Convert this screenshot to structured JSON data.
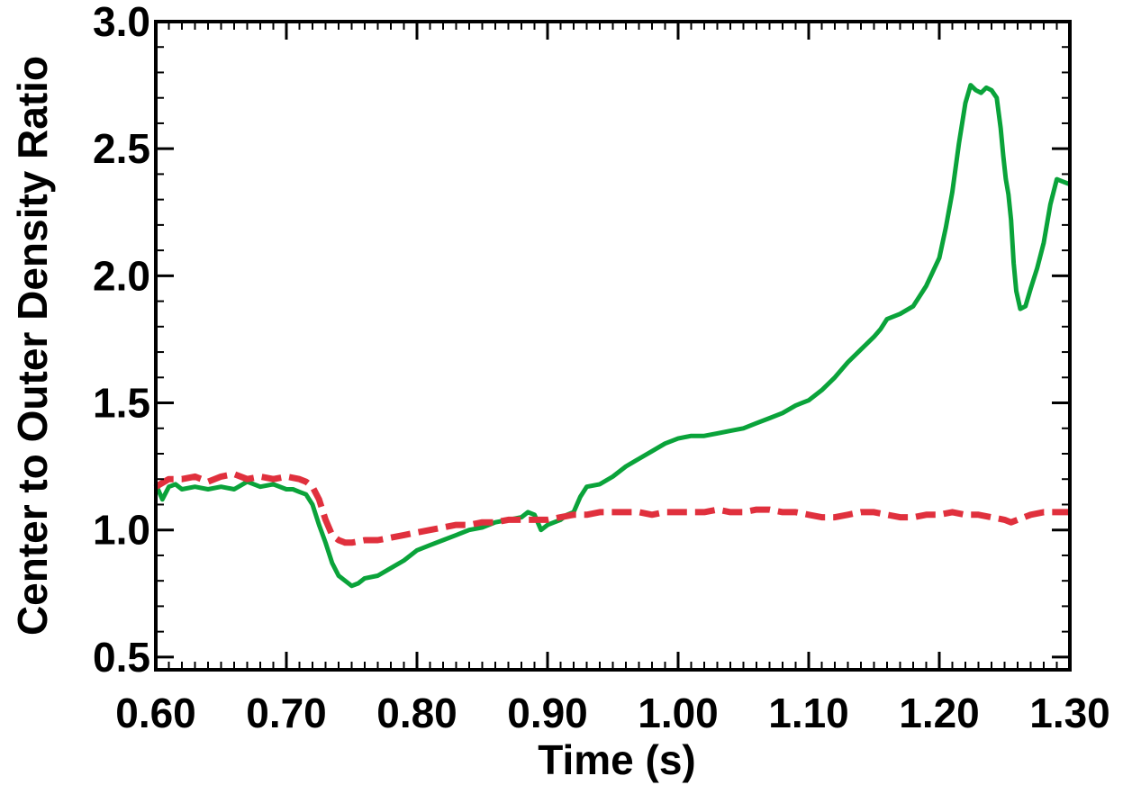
{
  "chart_data": {
    "type": "line",
    "title": "",
    "xlabel": "Time (s)",
    "ylabel": "Center to Outer Density Ratio",
    "xlim": [
      0.6,
      1.3
    ],
    "ylim": [
      0.45,
      3.0
    ],
    "xticks": [
      0.6,
      0.7,
      0.8,
      0.9,
      1.0,
      1.1,
      1.2,
      1.3
    ],
    "xtick_labels": [
      "0.60",
      "0.70",
      "0.80",
      "0.90",
      "1.00",
      "1.10",
      "1.20",
      "1.30"
    ],
    "yticks": [
      0.5,
      1.0,
      1.5,
      2.0,
      2.5,
      3.0
    ],
    "ytick_labels": [
      "0.5",
      "1.0",
      "1.5",
      "2.0",
      "2.5",
      "3.0"
    ],
    "grid": false,
    "legend": "none",
    "series": [
      {
        "color": "#0aa33a",
        "style": "solid",
        "points": [
          [
            0.6,
            1.18
          ],
          [
            0.605,
            1.12
          ],
          [
            0.61,
            1.17
          ],
          [
            0.615,
            1.18
          ],
          [
            0.62,
            1.16
          ],
          [
            0.63,
            1.17
          ],
          [
            0.64,
            1.16
          ],
          [
            0.65,
            1.17
          ],
          [
            0.66,
            1.16
          ],
          [
            0.67,
            1.19
          ],
          [
            0.68,
            1.17
          ],
          [
            0.69,
            1.18
          ],
          [
            0.7,
            1.16
          ],
          [
            0.705,
            1.16
          ],
          [
            0.71,
            1.15
          ],
          [
            0.715,
            1.14
          ],
          [
            0.72,
            1.1
          ],
          [
            0.725,
            1.02
          ],
          [
            0.73,
            0.95
          ],
          [
            0.735,
            0.87
          ],
          [
            0.74,
            0.82
          ],
          [
            0.745,
            0.8
          ],
          [
            0.75,
            0.78
          ],
          [
            0.755,
            0.79
          ],
          [
            0.76,
            0.81
          ],
          [
            0.77,
            0.82
          ],
          [
            0.78,
            0.85
          ],
          [
            0.79,
            0.88
          ],
          [
            0.8,
            0.92
          ],
          [
            0.81,
            0.94
          ],
          [
            0.82,
            0.96
          ],
          [
            0.83,
            0.98
          ],
          [
            0.84,
            1.0
          ],
          [
            0.85,
            1.01
          ],
          [
            0.86,
            1.03
          ],
          [
            0.87,
            1.04
          ],
          [
            0.88,
            1.05
          ],
          [
            0.885,
            1.07
          ],
          [
            0.89,
            1.06
          ],
          [
            0.895,
            1.0
          ],
          [
            0.9,
            1.02
          ],
          [
            0.905,
            1.03
          ],
          [
            0.91,
            1.04
          ],
          [
            0.915,
            1.06
          ],
          [
            0.92,
            1.07
          ],
          [
            0.925,
            1.13
          ],
          [
            0.93,
            1.17
          ],
          [
            0.94,
            1.18
          ],
          [
            0.95,
            1.21
          ],
          [
            0.96,
            1.25
          ],
          [
            0.97,
            1.28
          ],
          [
            0.98,
            1.31
          ],
          [
            0.99,
            1.34
          ],
          [
            1.0,
            1.36
          ],
          [
            1.01,
            1.37
          ],
          [
            1.02,
            1.37
          ],
          [
            1.03,
            1.38
          ],
          [
            1.04,
            1.39
          ],
          [
            1.05,
            1.4
          ],
          [
            1.06,
            1.42
          ],
          [
            1.07,
            1.44
          ],
          [
            1.08,
            1.46
          ],
          [
            1.09,
            1.49
          ],
          [
            1.1,
            1.51
          ],
          [
            1.11,
            1.55
          ],
          [
            1.12,
            1.6
          ],
          [
            1.13,
            1.66
          ],
          [
            1.14,
            1.71
          ],
          [
            1.15,
            1.76
          ],
          [
            1.155,
            1.79
          ],
          [
            1.16,
            1.83
          ],
          [
            1.17,
            1.85
          ],
          [
            1.18,
            1.88
          ],
          [
            1.19,
            1.96
          ],
          [
            1.2,
            2.07
          ],
          [
            1.205,
            2.19
          ],
          [
            1.21,
            2.33
          ],
          [
            1.215,
            2.52
          ],
          [
            1.22,
            2.68
          ],
          [
            1.224,
            2.75
          ],
          [
            1.228,
            2.73
          ],
          [
            1.232,
            2.72
          ],
          [
            1.236,
            2.74
          ],
          [
            1.24,
            2.73
          ],
          [
            1.244,
            2.7
          ],
          [
            1.247,
            2.58
          ],
          [
            1.249,
            2.47
          ],
          [
            1.251,
            2.38
          ],
          [
            1.253,
            2.32
          ],
          [
            1.255,
            2.22
          ],
          [
            1.257,
            2.05
          ],
          [
            1.259,
            1.94
          ],
          [
            1.262,
            1.87
          ],
          [
            1.266,
            1.88
          ],
          [
            1.27,
            1.95
          ],
          [
            1.275,
            2.03
          ],
          [
            1.28,
            2.13
          ],
          [
            1.285,
            2.28
          ],
          [
            1.29,
            2.38
          ],
          [
            1.295,
            2.37
          ],
          [
            1.3,
            2.36
          ]
        ]
      },
      {
        "color": "#e0303d",
        "style": "dashed",
        "points": [
          [
            0.6,
            1.17
          ],
          [
            0.61,
            1.2
          ],
          [
            0.62,
            1.2
          ],
          [
            0.63,
            1.21
          ],
          [
            0.64,
            1.19
          ],
          [
            0.65,
            1.21
          ],
          [
            0.66,
            1.22
          ],
          [
            0.67,
            1.2
          ],
          [
            0.68,
            1.21
          ],
          [
            0.69,
            1.2
          ],
          [
            0.7,
            1.21
          ],
          [
            0.71,
            1.2
          ],
          [
            0.715,
            1.19
          ],
          [
            0.72,
            1.17
          ],
          [
            0.725,
            1.12
          ],
          [
            0.73,
            1.04
          ],
          [
            0.735,
            0.98
          ],
          [
            0.74,
            0.96
          ],
          [
            0.745,
            0.95
          ],
          [
            0.75,
            0.95
          ],
          [
            0.76,
            0.96
          ],
          [
            0.77,
            0.96
          ],
          [
            0.78,
            0.97
          ],
          [
            0.79,
            0.98
          ],
          [
            0.8,
            0.99
          ],
          [
            0.81,
            1.0
          ],
          [
            0.82,
            1.01
          ],
          [
            0.83,
            1.02
          ],
          [
            0.84,
            1.02
          ],
          [
            0.85,
            1.03
          ],
          [
            0.86,
            1.03
          ],
          [
            0.87,
            1.04
          ],
          [
            0.88,
            1.04
          ],
          [
            0.89,
            1.04
          ],
          [
            0.9,
            1.04
          ],
          [
            0.91,
            1.05
          ],
          [
            0.92,
            1.06
          ],
          [
            0.93,
            1.06
          ],
          [
            0.94,
            1.07
          ],
          [
            0.95,
            1.07
          ],
          [
            0.96,
            1.07
          ],
          [
            0.97,
            1.07
          ],
          [
            0.98,
            1.06
          ],
          [
            0.99,
            1.07
          ],
          [
            1.0,
            1.07
          ],
          [
            1.01,
            1.07
          ],
          [
            1.02,
            1.07
          ],
          [
            1.03,
            1.08
          ],
          [
            1.04,
            1.07
          ],
          [
            1.05,
            1.07
          ],
          [
            1.06,
            1.08
          ],
          [
            1.07,
            1.08
          ],
          [
            1.08,
            1.07
          ],
          [
            1.09,
            1.07
          ],
          [
            1.1,
            1.06
          ],
          [
            1.11,
            1.05
          ],
          [
            1.12,
            1.05
          ],
          [
            1.13,
            1.06
          ],
          [
            1.14,
            1.07
          ],
          [
            1.15,
            1.07
          ],
          [
            1.16,
            1.06
          ],
          [
            1.17,
            1.05
          ],
          [
            1.18,
            1.05
          ],
          [
            1.19,
            1.06
          ],
          [
            1.2,
            1.06
          ],
          [
            1.21,
            1.07
          ],
          [
            1.22,
            1.06
          ],
          [
            1.23,
            1.06
          ],
          [
            1.24,
            1.05
          ],
          [
            1.25,
            1.04
          ],
          [
            1.255,
            1.03
          ],
          [
            1.26,
            1.04
          ],
          [
            1.27,
            1.06
          ],
          [
            1.28,
            1.07
          ],
          [
            1.29,
            1.07
          ],
          [
            1.3,
            1.07
          ]
        ]
      }
    ]
  }
}
